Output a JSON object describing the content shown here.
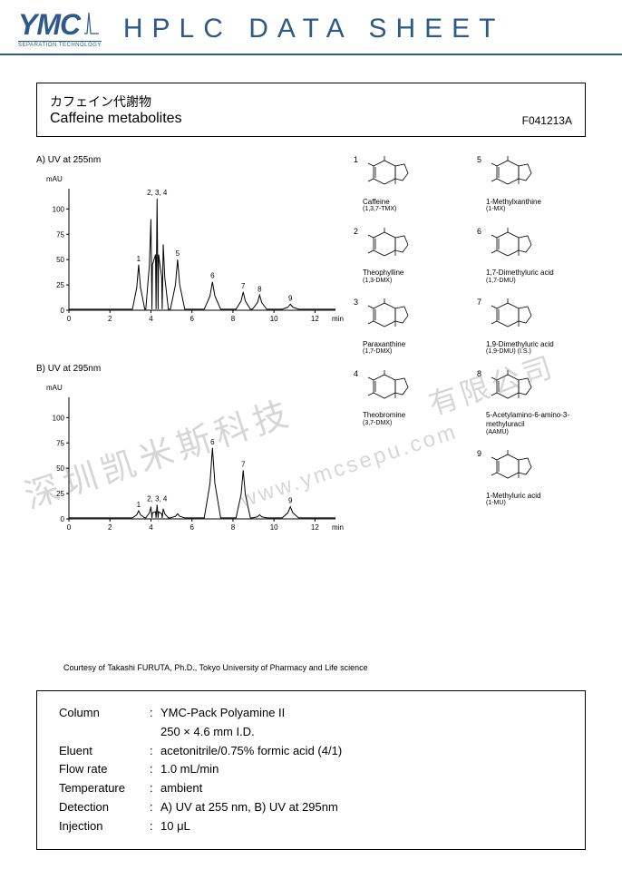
{
  "header": {
    "logo": "YMC",
    "logo_subtitle": "SEPARATION TECHNOLOGY",
    "sheet_title": "HPLC DATA SHEET"
  },
  "title": {
    "japanese": "カフェイン代謝物",
    "english": "Caffeine metabolites",
    "code": "F041213A"
  },
  "chartA": {
    "label": "A) UV at 255nm",
    "y_unit": "mAU",
    "y_ticks": [
      0,
      25,
      50,
      75,
      100
    ],
    "y_max": 120,
    "x_ticks": [
      0,
      2,
      4,
      6,
      8,
      10,
      12
    ],
    "x_unit": "min",
    "x_max": 13,
    "peaks": [
      {
        "x": 3.4,
        "h": 45,
        "w": 0.3,
        "label": "1"
      },
      {
        "x": 4.0,
        "h": 90,
        "w": 0.25,
        "label": ""
      },
      {
        "x": 4.3,
        "h": 110,
        "w": 0.25,
        "label": "2, 3, 4"
      },
      {
        "x": 4.6,
        "h": 65,
        "w": 0.25,
        "label": ""
      },
      {
        "x": 5.3,
        "h": 50,
        "w": 0.35,
        "label": "5"
      },
      {
        "x": 7.0,
        "h": 28,
        "w": 0.4,
        "label": "6"
      },
      {
        "x": 8.5,
        "h": 18,
        "w": 0.35,
        "label": "7"
      },
      {
        "x": 9.3,
        "h": 15,
        "w": 0.35,
        "label": "8"
      },
      {
        "x": 10.8,
        "h": 6,
        "w": 0.4,
        "label": "9"
      }
    ],
    "line_color": "#000000",
    "axis_color": "#000000",
    "font_size": 8
  },
  "chartB": {
    "label": "B) UV at 295nm",
    "y_unit": "mAU",
    "y_ticks": [
      0,
      25,
      50,
      75,
      100
    ],
    "y_max": 120,
    "x_ticks": [
      0,
      2,
      4,
      6,
      8,
      10,
      12
    ],
    "x_unit": "min",
    "x_max": 13,
    "peaks": [
      {
        "x": 3.4,
        "h": 8,
        "w": 0.3,
        "label": "1"
      },
      {
        "x": 4.0,
        "h": 12,
        "w": 0.25,
        "label": ""
      },
      {
        "x": 4.3,
        "h": 14,
        "w": 0.25,
        "label": "2, 3, 4"
      },
      {
        "x": 4.6,
        "h": 10,
        "w": 0.25,
        "label": ""
      },
      {
        "x": 5.3,
        "h": 5,
        "w": 0.35,
        "label": ""
      },
      {
        "x": 7.0,
        "h": 70,
        "w": 0.4,
        "label": "6"
      },
      {
        "x": 8.5,
        "h": 48,
        "w": 0.35,
        "label": "7"
      },
      {
        "x": 9.3,
        "h": 4,
        "w": 0.35,
        "label": ""
      },
      {
        "x": 10.8,
        "h": 12,
        "w": 0.4,
        "label": "9"
      }
    ],
    "line_color": "#000000",
    "axis_color": "#000000",
    "font_size": 8
  },
  "compounds": [
    {
      "num": "1",
      "name": "Caffeine",
      "sub": "(1,3,7-TMX)"
    },
    {
      "num": "5",
      "name": "1-Methylxanthine",
      "sub": "(1-MX)"
    },
    {
      "num": "2",
      "name": "Theophylline",
      "sub": "(1,3-DMX)"
    },
    {
      "num": "6",
      "name": "1,7-Dimethyluric acid",
      "sub": "(1,7-DMU)"
    },
    {
      "num": "3",
      "name": "Paraxanthine",
      "sub": "(1,7-DMX)"
    },
    {
      "num": "7",
      "name": "1,9-Dimethyluric acid",
      "sub": "(1,9-DMU) (I.S.)"
    },
    {
      "num": "4",
      "name": "Theobromine",
      "sub": "(3,7-DMX)"
    },
    {
      "num": "8",
      "name": "5-Acetylamino-6-amino-3-methyluracil",
      "sub": "(AAMU)"
    },
    {
      "num": "9",
      "name": "1-Methyluric acid",
      "sub": "(1-MU)"
    }
  ],
  "courtesy": "Courtesy of Takashi FURUTA, Ph.D., Tokyo University of Pharmacy and Life science",
  "conditions": {
    "rows": [
      {
        "label": "Column",
        "value": "YMC-Pack Polyamine II"
      },
      {
        "label": "",
        "value": "250 × 4.6 mm I.D."
      },
      {
        "label": "Eluent",
        "value": "acetonitrile/0.75% formic acid (4/1)"
      },
      {
        "label": "Flow rate",
        "value": "1.0 mL/min"
      },
      {
        "label": "Temperature",
        "value": "ambient"
      },
      {
        "label": "Detection",
        "value": "A) UV at 255 nm, B) UV at 295nm"
      },
      {
        "label": "Injection",
        "value": "10 μL"
      }
    ]
  },
  "watermarks": {
    "w1": "深圳凯米斯科技",
    "w2": "www.ymcsepu.com",
    "w3": "有限公司"
  },
  "colors": {
    "brand": "#2d5a8a",
    "text": "#000000",
    "watermark": "rgba(120,120,120,0.3)"
  }
}
